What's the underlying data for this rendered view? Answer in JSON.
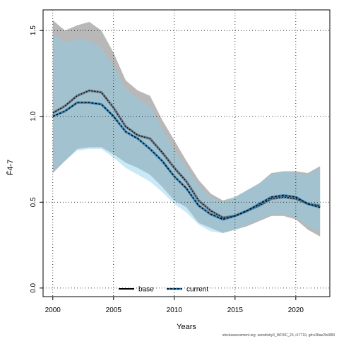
{
  "chart_data": {
    "type": "line",
    "xlabel": "Years",
    "ylabel": "F̄4-7",
    "xlim": [
      1999.2,
      2022.8
    ],
    "ylim": [
      -0.05,
      1.62
    ],
    "xticks": [
      2000,
      2005,
      2010,
      2015,
      2020
    ],
    "yticks": [
      0.0,
      0.5,
      1.0,
      1.5
    ],
    "ytick_labels": [
      "0.0",
      "0.5",
      "1.0",
      "1.5"
    ],
    "grid": true,
    "legend_position": "bottom",
    "x": [
      2000,
      2001,
      2002,
      2003,
      2004,
      2005,
      2006,
      2007,
      2008,
      2009,
      2010,
      2011,
      2012,
      2013,
      2014,
      2015,
      2016,
      2017,
      2018,
      2019,
      2020,
      2021,
      2022
    ],
    "series": [
      {
        "name": "base",
        "color": "#6f7f8c",
        "line_color": "#000000",
        "values": [
          1.02,
          1.06,
          1.12,
          1.15,
          1.14,
          1.05,
          0.94,
          0.89,
          0.87,
          0.79,
          0.7,
          0.62,
          0.51,
          0.45,
          0.41,
          0.42,
          0.45,
          0.48,
          0.52,
          0.53,
          0.52,
          0.49,
          0.48
        ],
        "lower": [
          0.67,
          0.74,
          0.81,
          0.82,
          0.82,
          0.78,
          0.73,
          0.7,
          0.66,
          0.59,
          0.51,
          0.47,
          0.38,
          0.35,
          0.32,
          0.34,
          0.36,
          0.39,
          0.42,
          0.42,
          0.4,
          0.34,
          0.3
        ],
        "upper": [
          1.56,
          1.5,
          1.53,
          1.55,
          1.5,
          1.37,
          1.21,
          1.15,
          1.12,
          0.98,
          0.86,
          0.74,
          0.63,
          0.55,
          0.51,
          0.53,
          0.57,
          0.61,
          0.67,
          0.68,
          0.68,
          0.67,
          0.71
        ]
      },
      {
        "name": "current",
        "color": "#1f77b4",
        "line_color": "#000000",
        "values": [
          1.0,
          1.03,
          1.08,
          1.08,
          1.07,
          1.0,
          0.91,
          0.87,
          0.81,
          0.74,
          0.65,
          0.58,
          0.48,
          0.43,
          0.4,
          0.42,
          0.45,
          0.49,
          0.53,
          0.54,
          0.53,
          0.49,
          0.47
        ],
        "lower": [
          0.68,
          0.74,
          0.8,
          0.81,
          0.81,
          0.76,
          0.7,
          0.66,
          0.62,
          0.56,
          0.49,
          0.44,
          0.37,
          0.33,
          0.32,
          0.34,
          0.37,
          0.4,
          0.43,
          0.43,
          0.41,
          0.36,
          0.33
        ],
        "upper": [
          1.48,
          1.43,
          1.45,
          1.44,
          1.4,
          1.29,
          1.16,
          1.1,
          1.06,
          0.93,
          0.8,
          0.7,
          0.6,
          0.53,
          0.5,
          0.53,
          0.57,
          0.61,
          0.66,
          0.68,
          0.67,
          0.66,
          0.7
        ]
      }
    ],
    "band_colors": {
      "base": "#a0a0a0",
      "current": "#87ceeb"
    }
  },
  "footer": "stockassessment.org, sensitivity3_WOSC_23, r17719, git:e38ae2b4989"
}
